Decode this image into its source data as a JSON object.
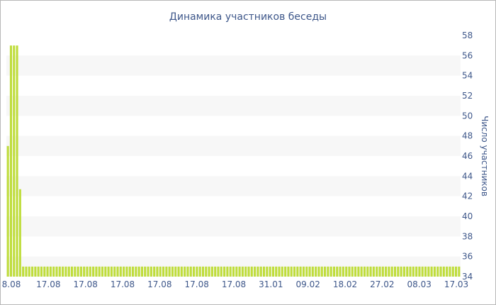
{
  "chart_data": {
    "type": "bar",
    "title": "Динамика участников беседы",
    "ylabel": "Число участников",
    "xlabel": "",
    "ylim": [
      34,
      58
    ],
    "yticks": [
      34,
      36,
      38,
      40,
      42,
      44,
      46,
      48,
      50,
      52,
      54,
      56,
      58
    ],
    "y_axis_position": "right",
    "grid": "alternating horizontal bands",
    "x_tick_labels": [
      "8.08",
      "17.08",
      "17.08",
      "17.08",
      "17.08",
      "17.08",
      "17.08",
      "31.01",
      "09.02",
      "18.02",
      "27.02",
      "08.03",
      "17.03"
    ],
    "values": [
      47,
      57,
      57,
      57,
      42.7,
      35,
      35,
      35,
      35,
      35,
      35,
      35,
      35,
      35,
      35,
      35,
      35,
      35,
      35,
      35,
      35,
      35,
      35,
      35,
      35,
      35,
      35,
      35,
      35,
      35,
      35,
      35,
      35,
      35,
      35,
      35,
      35,
      35,
      35,
      35,
      35,
      35,
      35,
      35,
      35,
      35,
      35,
      35,
      35,
      35,
      35,
      35,
      35,
      35,
      35,
      35,
      35,
      35,
      35,
      35,
      35,
      35,
      35,
      35,
      35,
      35,
      35,
      35,
      35,
      35,
      35,
      35,
      35,
      35,
      35,
      35,
      35,
      35,
      35,
      35,
      35,
      35,
      35,
      35,
      35,
      35,
      35,
      35,
      35,
      35,
      35,
      35,
      35,
      35,
      35,
      35,
      35,
      35,
      35,
      35,
      35,
      35,
      35,
      35,
      35,
      35,
      35,
      35,
      35,
      35,
      35,
      35,
      35,
      35,
      35,
      35,
      35,
      35,
      35,
      35,
      35,
      35,
      35,
      35,
      35,
      35,
      35,
      35,
      35,
      35,
      35,
      35,
      35,
      35,
      35,
      35,
      35,
      35,
      35,
      35,
      35,
      35,
      35,
      35,
      35,
      35,
      35,
      35,
      35
    ],
    "bar_color": "#bfdd3c",
    "band_color": "#f7f7f7",
    "text_color": "#3e578a"
  }
}
